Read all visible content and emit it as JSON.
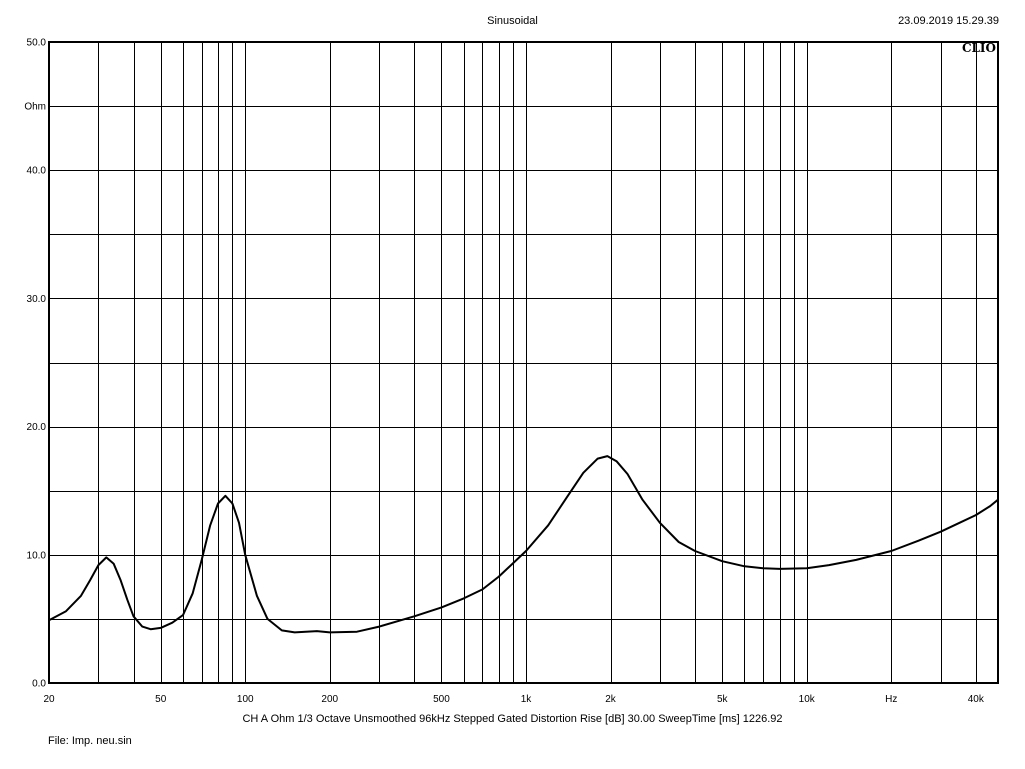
{
  "header": {
    "title": "Sinusoidal",
    "datetime": "23.09.2019 15.29.39",
    "brand": "CLIO"
  },
  "footer": {
    "info": "CH A   Ohm    1/3 Octave   Unsmoothed   96kHz   Stepped    Gated    Distortion Rise [dB] 30.00    SweepTime [ms] 1226.92",
    "file": "File: Imp. neu.sin"
  },
  "chart_data": {
    "type": "line",
    "title": "Sinusoidal",
    "xlabel": "Hz",
    "ylabel": "Ohm",
    "xscale": "log",
    "xlim": [
      20,
      48000
    ],
    "ylim": [
      0,
      50
    ],
    "grid": true,
    "y_ticks": [
      {
        "value": 0,
        "label": "0.0"
      },
      {
        "value": 10,
        "label": "10.0"
      },
      {
        "value": 20,
        "label": "20.0"
      },
      {
        "value": 30,
        "label": "30.0"
      },
      {
        "value": 40,
        "label": "40.0"
      },
      {
        "value": 45,
        "label": "Ohm"
      },
      {
        "value": 50,
        "label": "50.0"
      }
    ],
    "x_ticks": [
      {
        "value": 20,
        "label": "20"
      },
      {
        "value": 50,
        "label": "50"
      },
      {
        "value": 100,
        "label": "100"
      },
      {
        "value": 200,
        "label": "200"
      },
      {
        "value": 500,
        "label": "500"
      },
      {
        "value": 1000,
        "label": "1k"
      },
      {
        "value": 2000,
        "label": "2k"
      },
      {
        "value": 5000,
        "label": "5k"
      },
      {
        "value": 10000,
        "label": "10k"
      },
      {
        "value": 20000,
        "label": "Hz"
      },
      {
        "value": 40000,
        "label": "40k"
      }
    ],
    "series": [
      {
        "color": "#000000",
        "points": [
          [
            20,
            4.9
          ],
          [
            23,
            5.6
          ],
          [
            26,
            6.8
          ],
          [
            28,
            8.0
          ],
          [
            30,
            9.2
          ],
          [
            32,
            9.8
          ],
          [
            34,
            9.3
          ],
          [
            36,
            8.0
          ],
          [
            38,
            6.5
          ],
          [
            40,
            5.2
          ],
          [
            43,
            4.4
          ],
          [
            46,
            4.2
          ],
          [
            50,
            4.3
          ],
          [
            55,
            4.7
          ],
          [
            60,
            5.3
          ],
          [
            65,
            7.0
          ],
          [
            70,
            9.6
          ],
          [
            75,
            12.3
          ],
          [
            80,
            14.0
          ],
          [
            85,
            14.6
          ],
          [
            90,
            14.0
          ],
          [
            95,
            12.5
          ],
          [
            100,
            10.0
          ],
          [
            110,
            6.8
          ],
          [
            120,
            5.0
          ],
          [
            135,
            4.1
          ],
          [
            150,
            3.95
          ],
          [
            180,
            4.05
          ],
          [
            200,
            3.95
          ],
          [
            250,
            4.0
          ],
          [
            300,
            4.4
          ],
          [
            400,
            5.2
          ],
          [
            500,
            5.9
          ],
          [
            600,
            6.6
          ],
          [
            700,
            7.3
          ],
          [
            800,
            8.3
          ],
          [
            1000,
            10.3
          ],
          [
            1200,
            12.3
          ],
          [
            1400,
            14.5
          ],
          [
            1600,
            16.4
          ],
          [
            1800,
            17.5
          ],
          [
            1950,
            17.7
          ],
          [
            2100,
            17.3
          ],
          [
            2300,
            16.3
          ],
          [
            2600,
            14.3
          ],
          [
            3000,
            12.5
          ],
          [
            3500,
            11.0
          ],
          [
            4000,
            10.3
          ],
          [
            5000,
            9.5
          ],
          [
            6000,
            9.1
          ],
          [
            7000,
            8.95
          ],
          [
            8000,
            8.9
          ],
          [
            10000,
            8.95
          ],
          [
            12000,
            9.2
          ],
          [
            15000,
            9.6
          ],
          [
            20000,
            10.3
          ],
          [
            25000,
            11.1
          ],
          [
            30000,
            11.8
          ],
          [
            35000,
            12.5
          ],
          [
            40000,
            13.1
          ],
          [
            45000,
            13.8
          ],
          [
            48000,
            14.3
          ]
        ]
      }
    ]
  }
}
